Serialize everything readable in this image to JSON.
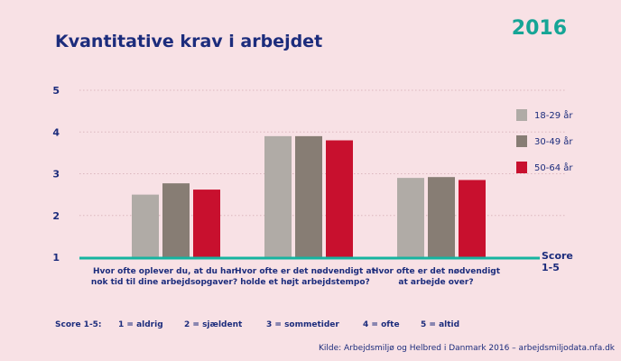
{
  "header": {
    "title": "Kvantitative krav i arbejdet",
    "year": "2016"
  },
  "chart_data": {
    "type": "bar",
    "categories": [
      [
        "Hvor ofte oplever du, at du har",
        "nok tid til dine arbejdsopgaver?"
      ],
      [
        "Hvor ofte er det nødvendigt at",
        "holde et højt arbejdstempo?"
      ],
      [
        "Hvor ofte er det nødvendigt",
        "at arbejde over?"
      ]
    ],
    "series": [
      {
        "name": "18-29 år",
        "color": "#b0aba6",
        "values": [
          2.5,
          3.9,
          2.9
        ]
      },
      {
        "name": "30-49 år",
        "color": "#877d74",
        "values": [
          2.77,
          3.9,
          2.92
        ]
      },
      {
        "name": "50-64 år",
        "color": "#c8102e",
        "values": [
          2.62,
          3.8,
          2.85
        ]
      }
    ],
    "ylim": [
      1,
      5
    ],
    "yticks": [
      "1",
      "2",
      "3",
      "4",
      "5"
    ],
    "axis_label": [
      "Score",
      "1-5"
    ],
    "grid": true,
    "legend": "right"
  },
  "scale": {
    "label": "Score 1-5:",
    "items": [
      "1 = aldrig",
      "2 = sjældent",
      "3 = sommetider",
      "4 = ofte",
      "5 = altid"
    ]
  },
  "source": "Kilde: Arbejdsmiljø og Helbred i Danmark 2016 – arbejdsmiljodata.nfa.dk",
  "colors": {
    "axis": "#16b4a0",
    "grid": "#dbb8be",
    "text": "#1c2c7c"
  }
}
